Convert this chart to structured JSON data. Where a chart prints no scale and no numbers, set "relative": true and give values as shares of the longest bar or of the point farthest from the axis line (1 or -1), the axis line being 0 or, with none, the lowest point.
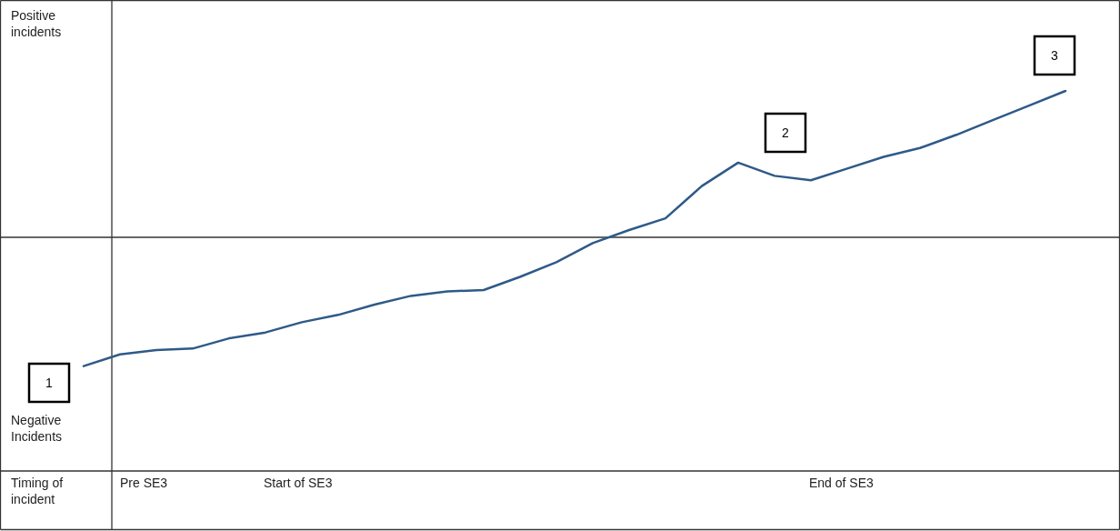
{
  "chart_data": {
    "type": "line",
    "relative": true,
    "categories": [
      null,
      null,
      null,
      null,
      null,
      null,
      null,
      null,
      null,
      null,
      null,
      null,
      null,
      null,
      null,
      null,
      null,
      null,
      null,
      null,
      null,
      null,
      null,
      null,
      null,
      null,
      null,
      null
    ],
    "series": [
      {
        "color": "#2e5a88",
        "values": [
          -0.88,
          -0.8,
          -0.77,
          -0.76,
          -0.69,
          -0.65,
          -0.58,
          -0.53,
          -0.46,
          -0.4,
          -0.37,
          -0.36,
          -0.27,
          -0.17,
          -0.04,
          0.05,
          0.13,
          0.35,
          0.51,
          0.42,
          0.39,
          0.47,
          0.55,
          0.61,
          0.7,
          0.8,
          0.9,
          1
        ]
      }
    ],
    "annotations": [
      "Positive incidents",
      "Negative Incidents",
      "Timing of incident",
      "Pre SE3",
      "Start of SE3",
      "End of SE3",
      "1",
      "2",
      "3"
    ],
    "marker": "none",
    "line_style": "solid"
  }
}
